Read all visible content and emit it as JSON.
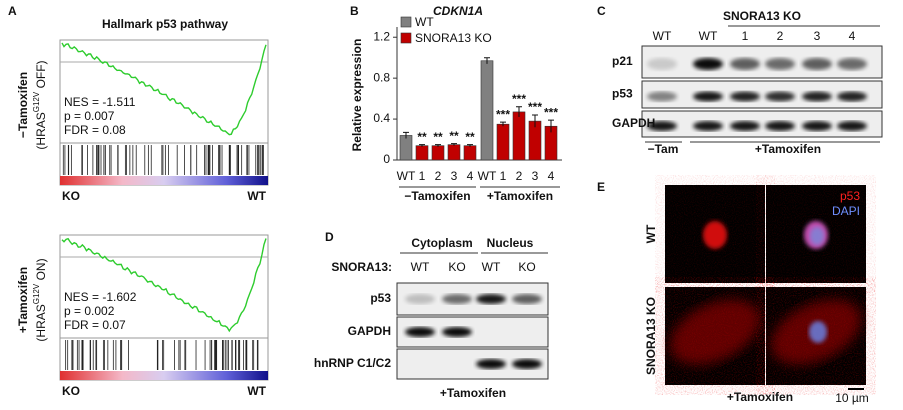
{
  "panel_labels": [
    "A",
    "B",
    "C",
    "D",
    "E"
  ],
  "gsea": {
    "title": "Hallmark p53 pathway",
    "plots": [
      {
        "condition": "−Tamoxifen",
        "genotype": [
          "(HRAS",
          "G12V",
          " OFF)"
        ],
        "stats": [
          "NES = -1.511",
          "p = 0.007",
          "FDR = 0.08"
        ],
        "left": "KO",
        "right": "WT"
      },
      {
        "condition": "+Tamoxifen",
        "genotype": [
          "(HRAS",
          "G12V",
          " ON)"
        ],
        "stats": [
          "NES = -1.602",
          "p = 0.002",
          "FDR = 0.07"
        ],
        "left": "KO",
        "right": "WT"
      }
    ]
  },
  "chart_data": {
    "type": "bar",
    "title": "CDKN1A",
    "ylabel": "Relative expression",
    "categories": [
      "WT",
      "1",
      "2",
      "3",
      "4",
      "WT",
      "1",
      "2",
      "3",
      "4"
    ],
    "group_labels": [
      "−Tamoxifen",
      "+Tamoxifen"
    ],
    "series": [
      {
        "name": "WT",
        "color": "#808080",
        "values": [
          0.24,
          null,
          null,
          null,
          null,
          0.97,
          null,
          null,
          null,
          null
        ],
        "errors": [
          0.03,
          null,
          null,
          null,
          null,
          0.03,
          null,
          null,
          null,
          null
        ]
      },
      {
        "name": "SNORA13 KO",
        "color": "#c00000",
        "values": [
          null,
          0.14,
          0.14,
          0.15,
          0.14,
          null,
          0.35,
          0.47,
          0.38,
          0.33
        ],
        "errors": [
          null,
          0.01,
          0.01,
          0.01,
          0.01,
          null,
          0.02,
          0.05,
          0.06,
          0.06
        ],
        "significance": [
          null,
          "**",
          "**",
          "**",
          "**",
          null,
          "***",
          "***",
          "***",
          "***"
        ]
      }
    ],
    "ylim": [
      0,
      1.3
    ],
    "yticks": [
      0,
      0.4,
      0.8,
      1.2
    ]
  },
  "blot_c": {
    "header": "SNORA13 KO",
    "columns": [
      "WT",
      "WT",
      "1",
      "2",
      "3",
      "4"
    ],
    "rows": [
      "p21",
      "p53",
      "GAPDH"
    ],
    "groups": [
      "−Tam",
      "+Tamoxifen"
    ]
  },
  "blot_d": {
    "groups": [
      "Cytoplasm",
      "Nucleus"
    ],
    "row_header": "SNORA13:",
    "columns": [
      "WT",
      "KO",
      "WT",
      "KO"
    ],
    "rows": [
      "p53",
      "GAPDH",
      "hnRNP C1/C2"
    ],
    "footer": "+Tamoxifen"
  },
  "panel_e": {
    "channels": [
      "p53",
      "DAPI"
    ],
    "rows": [
      "WT",
      "SNORA13 KO"
    ],
    "footer": "+Tamoxifen",
    "scale": "10 µm"
  }
}
